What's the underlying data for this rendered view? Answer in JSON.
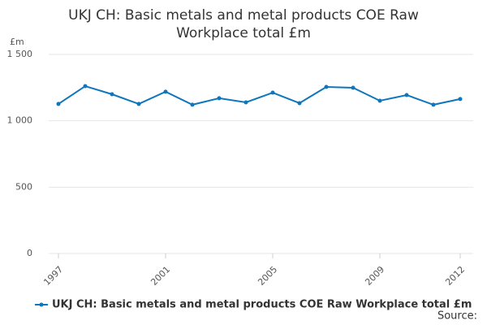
{
  "chart_data": {
    "type": "line",
    "title": "UKJ CH: Basic metals and metal products COE Raw Workplace total £m",
    "y_label": "£m",
    "source": "Source:",
    "x": [
      1997,
      1998,
      1999,
      2000,
      2001,
      2002,
      2003,
      2004,
      2005,
      2006,
      2007,
      2008,
      2009,
      2010,
      2011,
      2012
    ],
    "series": [
      {
        "name": "UKJ CH: Basic metals and metal products COE Raw Workplace total £m",
        "color": "#0e76bc",
        "values": [
          1127,
          1261,
          1200,
          1127,
          1219,
          1121,
          1170,
          1139,
          1212,
          1133,
          1255,
          1249,
          1151,
          1194,
          1121,
          1164
        ]
      }
    ],
    "xlim": [
      1997,
      2012
    ],
    "xticks": [
      1997,
      2001,
      2005,
      2009,
      2012
    ],
    "ylim": [
      0,
      1500
    ],
    "yticks": [
      0,
      500,
      {
        "value": 1000,
        "label": "1 000"
      },
      {
        "value": 1500,
        "label": "1 500"
      }
    ],
    "grid": true
  }
}
